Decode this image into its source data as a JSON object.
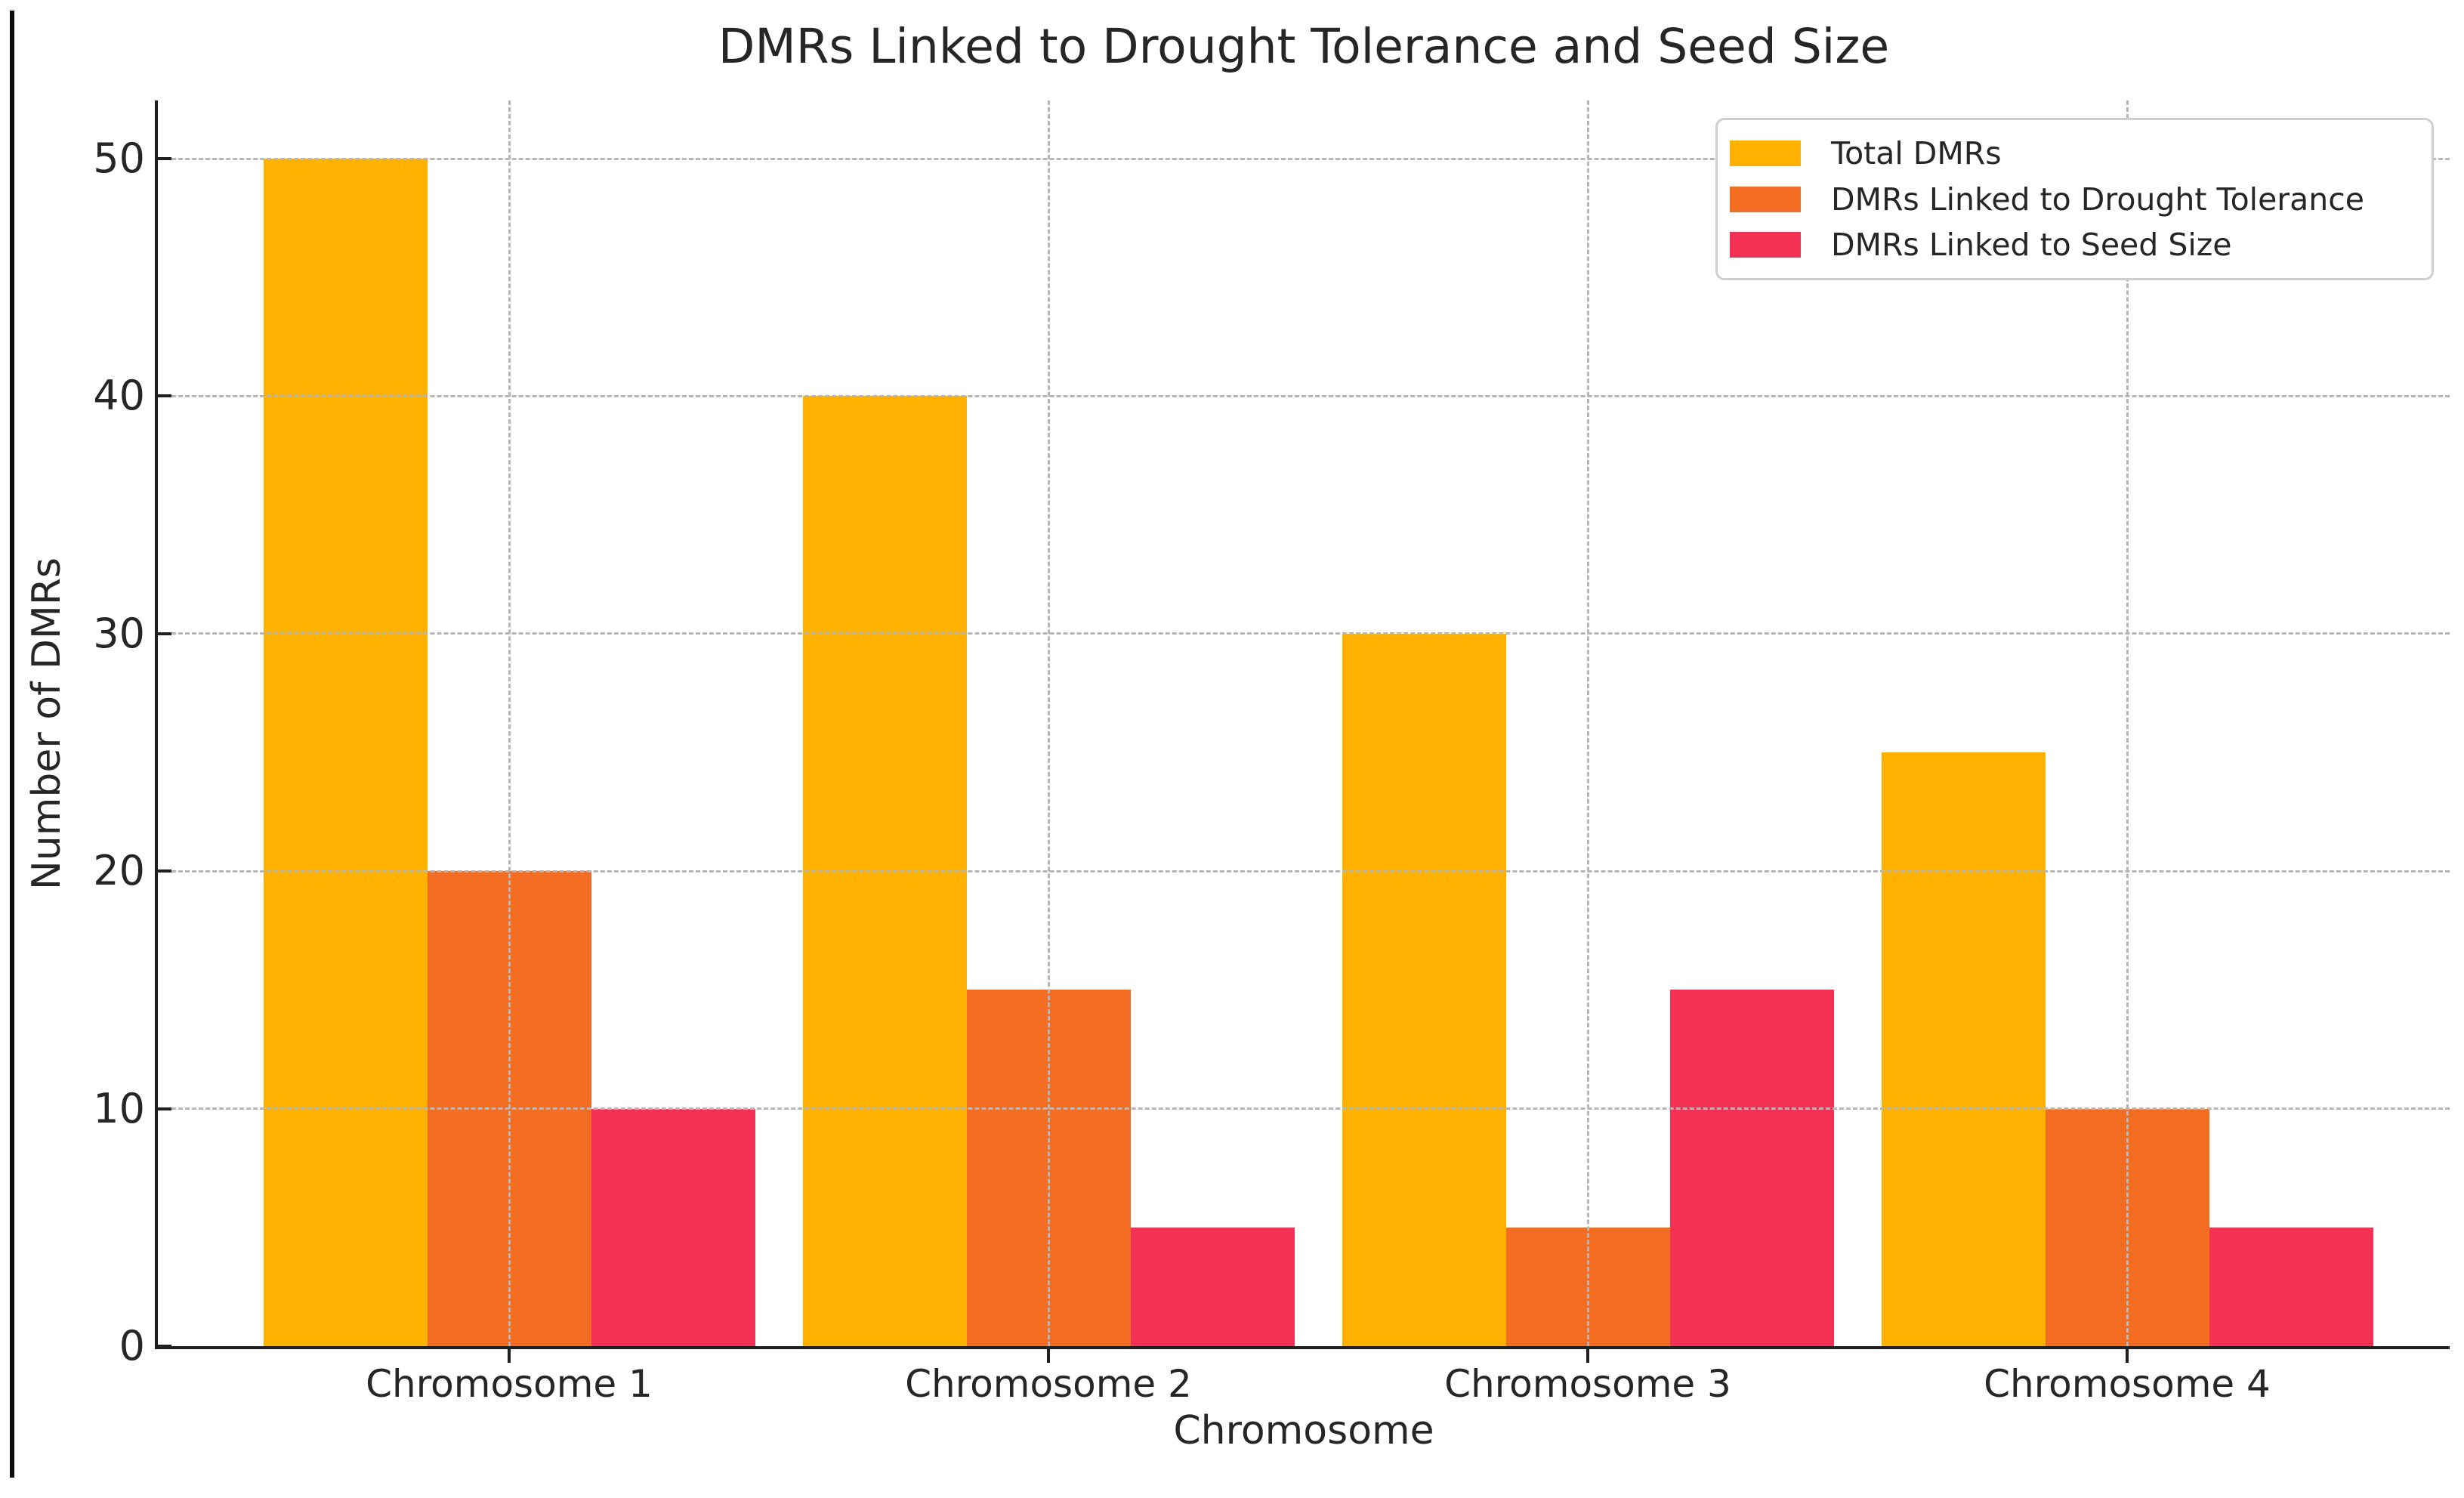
{
  "figure": {
    "background_color": "#ffffff",
    "text_color": "#262626",
    "spine_color": "#1f1f1f",
    "gridline_color": "#b6b6b6",
    "legend_border_color": "#cfcfcf"
  },
  "chart_data": {
    "type": "bar",
    "title": "DMRs Linked to Drought Tolerance and Seed Size",
    "xlabel": "Chromosome",
    "ylabel": "Number of DMRs",
    "categories": [
      "Chromosome 1",
      "Chromosome 2",
      "Chromosome 3",
      "Chromosome 4"
    ],
    "series": [
      {
        "name": "Total DMRs",
        "color": "#FFB100",
        "values": [
          50,
          40,
          30,
          25
        ]
      },
      {
        "name": "DMRs Linked to Drought Tolerance",
        "color": "#F26D22",
        "values": [
          20,
          15,
          5,
          10
        ]
      },
      {
        "name": "DMRs Linked to Seed Size",
        "color": "#F33154",
        "values": [
          10,
          5,
          15,
          5
        ]
      }
    ],
    "ylim": [
      0,
      52
    ],
    "yticks": [
      0,
      10,
      20,
      30,
      40,
      50
    ],
    "grid": true,
    "grid_style": "dashed",
    "grid_above_bars": true,
    "legend_position": "upper right",
    "bar_group_width": 0.9
  }
}
